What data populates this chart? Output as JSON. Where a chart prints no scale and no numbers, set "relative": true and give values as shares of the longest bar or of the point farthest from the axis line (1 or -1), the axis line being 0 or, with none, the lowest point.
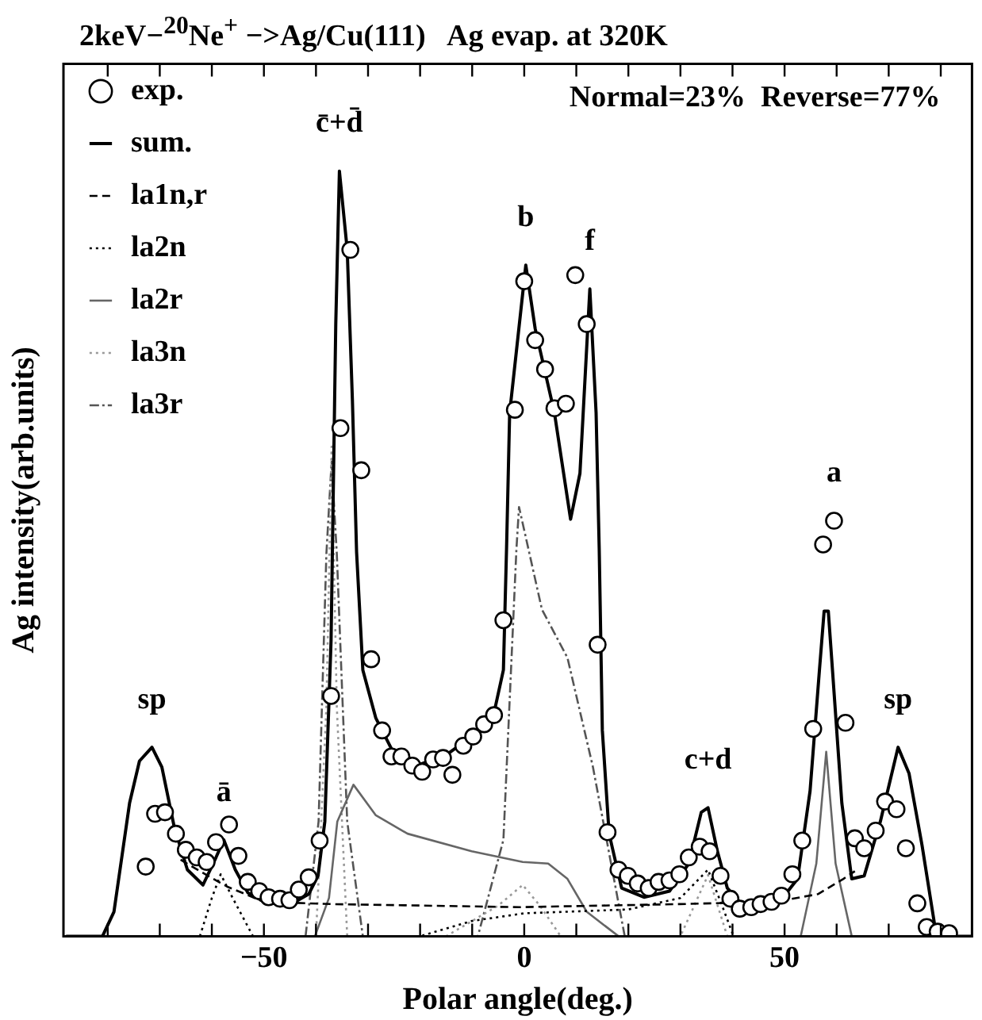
{
  "chart_data": {
    "type": "line",
    "title": "2keV−$^{20}$Ne$^{+}$ −>Ag/Cu(111)   Ag evap. at 320K",
    "subtitle": "Normal=23%  Reverse=77%",
    "xlabel": "Polar angle(deg.)",
    "ylabel": "Ag intensity(arb.units)",
    "relative": true,
    "grid": false,
    "legend": "top left",
    "xlim": [
      -88.5,
      86
    ],
    "xticks": [
      {
        "value": -80,
        "label": null
      },
      {
        "value": -70,
        "label": null
      },
      {
        "value": -60,
        "label": null
      },
      -50,
      {
        "value": -40,
        "label": null
      },
      {
        "value": -30,
        "label": null
      },
      {
        "value": -20,
        "label": null
      },
      {
        "value": -10,
        "label": null
      },
      0,
      {
        "value": 10,
        "label": null
      },
      {
        "value": 20,
        "label": null
      },
      {
        "value": 30,
        "label": null
      },
      {
        "value": 40,
        "label": null
      },
      50,
      {
        "value": 60,
        "label": null
      },
      {
        "value": 70,
        "label": null
      },
      {
        "value": 80,
        "label": null
      }
    ],
    "annotations": [
      {
        "text": "sp",
        "x": -71.5,
        "y": 0.247
      },
      {
        "text": "ā",
        "x": -57.7,
        "y": 0.126
      },
      {
        "text": "c̄+d̄",
        "x": -35.5,
        "y": 1.0
      },
      {
        "text": "b",
        "x": 0.3,
        "y": 0.877
      },
      {
        "text": "f",
        "x": 12.6,
        "y": 0.846
      },
      {
        "text": "c+d",
        "x": 35.3,
        "y": 0.168
      },
      {
        "text": "a",
        "x": 59.5,
        "y": 0.543
      },
      {
        "text": "sp",
        "x": 71.8,
        "y": 0.247
      }
    ],
    "series": [
      {
        "name": "exp.",
        "type": "scatter",
        "marker": "circle",
        "color": "#000000",
        "x": [
          -72.7,
          -70.9,
          -69.0,
          -66.9,
          -65.0,
          -62.9,
          -61.0,
          -59.2,
          -56.7,
          -54.9,
          -53.1,
          -50.9,
          -49.1,
          -46.9,
          -45.1,
          -43.3,
          -41.4,
          -39.3,
          -37.1,
          -35.3,
          -33.4,
          -31.3,
          -29.4,
          -27.3,
          -25.5,
          -23.6,
          -21.5,
          -19.6,
          -17.5,
          -15.6,
          -13.8,
          -11.7,
          -9.8,
          -7.7,
          -5.8,
          -4.0,
          -1.8,
          0,
          2.1,
          4.0,
          5.8,
          8.0,
          9.8,
          12.0,
          14.1,
          16.0,
          18.1,
          19.9,
          21.8,
          23.9,
          25.8,
          27.9,
          29.8,
          31.6,
          33.7,
          35.6,
          37.7,
          39.6,
          41.4,
          43.6,
          45.4,
          47.5,
          49.4,
          51.5,
          53.4,
          55.5,
          57.4,
          59.5,
          61.7,
          63.5,
          65.3,
          67.5,
          69.3,
          71.5,
          73.3,
          75.5,
          77.3,
          79.4,
          81.6
        ],
        "values": [
          0.091,
          0.16,
          0.162,
          0.134,
          0.113,
          0.103,
          0.097,
          0.123,
          0.146,
          0.105,
          0.071,
          0.059,
          0.051,
          0.049,
          0.047,
          0.061,
          0.077,
          0.125,
          0.314,
          0.664,
          0.897,
          0.609,
          0.362,
          0.269,
          0.235,
          0.235,
          0.223,
          0.215,
          0.231,
          0.233,
          0.211,
          0.249,
          0.261,
          0.277,
          0.289,
          0.413,
          0.688,
          0.856,
          0.779,
          0.741,
          0.69,
          0.696,
          0.864,
          0.8,
          0.381,
          0.136,
          0.087,
          0.079,
          0.069,
          0.063,
          0.071,
          0.073,
          0.081,
          0.103,
          0.117,
          0.111,
          0.079,
          0.049,
          0.036,
          0.038,
          0.042,
          0.045,
          0.053,
          0.081,
          0.125,
          0.271,
          0.512,
          0.543,
          0.279,
          0.128,
          0.115,
          0.138,
          0.176,
          0.166,
          0.115,
          0.043,
          0.012,
          0.006,
          0.004
        ]
      },
      {
        "name": "sum.",
        "type": "line",
        "line_style": "solid",
        "color": "#000000",
        "x": [
          -88,
          -81,
          -78.8,
          -75.8,
          -73.9,
          -71.5,
          -69.6,
          -67.2,
          -64.7,
          -61.7,
          -59.2,
          -57.7,
          -55.5,
          -53.1,
          -49.4,
          -44.5,
          -41.4,
          -39.6,
          -38.3,
          -37.1,
          -36.2,
          -35.5,
          -34.0,
          -33.0,
          -32.2,
          -31.0,
          -28.5,
          -25.5,
          -19.9,
          -15.0,
          -10.1,
          -5.8,
          -4.0,
          -3.4,
          -2.8,
          0.3,
          2.1,
          5.8,
          8.9,
          10.7,
          12.6,
          13.8,
          14.4,
          15.0,
          16.3,
          18.7,
          23.0,
          27.9,
          31.6,
          34.0,
          35.3,
          37.1,
          39.0,
          42.0,
          48.8,
          52.5,
          54.9,
          56.7,
          57.6,
          58.4,
          59.2,
          61.0,
          62.9,
          65.3,
          68.4,
          71.8,
          73.9,
          76.4,
          78.8,
          80.7,
          86
        ],
        "values": [
          0,
          0,
          0.032,
          0.174,
          0.229,
          0.247,
          0.221,
          0.142,
          0.087,
          0.067,
          0.103,
          0.126,
          0.087,
          0.057,
          0.043,
          0.043,
          0.055,
          0.079,
          0.15,
          0.387,
          0.8,
          1.0,
          0.897,
          0.7,
          0.502,
          0.348,
          0.285,
          0.245,
          0.225,
          0.237,
          0.261,
          0.292,
          0.348,
          0.506,
          0.684,
          0.877,
          0.794,
          0.684,
          0.545,
          0.605,
          0.846,
          0.684,
          0.506,
          0.269,
          0.134,
          0.063,
          0.051,
          0.059,
          0.095,
          0.162,
          0.168,
          0.111,
          0.063,
          0.04,
          0.043,
          0.075,
          0.19,
          0.348,
          0.425,
          0.425,
          0.348,
          0.174,
          0.075,
          0.079,
          0.15,
          0.247,
          0.213,
          0.119,
          0.016,
          0,
          0
        ]
      },
      {
        "name": "la1n,r",
        "type": "line",
        "line_style": "dashed",
        "color": "#000000",
        "x": [
          -66,
          -62.3,
          -57.1,
          -50,
          -36.8,
          -0.9,
          29.8,
          48.2,
          56.4,
          61.3,
          63.5
        ],
        "values": [
          0.1,
          0.085,
          0.065,
          0.045,
          0.042,
          0.038,
          0.042,
          0.045,
          0.055,
          0.075,
          0.085
        ]
      },
      {
        "name": "la2n",
        "type": "line",
        "line_style": "dotted",
        "color": "#000000",
        "x": [
          -62.3,
          -60,
          -58.3,
          -56,
          -52.1,
          -20,
          -10,
          0,
          20,
          30,
          35.3,
          38,
          40.2
        ],
        "values": [
          0,
          0.05,
          0.081,
          0.05,
          0,
          0,
          0.02,
          0.03,
          0.035,
          0.05,
          0.087,
          0.04,
          0
        ]
      },
      {
        "name": "la2r",
        "type": "line",
        "line_style": "solid",
        "color": "#666666",
        "x": [
          -40.2,
          -37.5,
          -35.9,
          -32.8,
          -28.5,
          -22.4,
          -10.1,
          -0.3,
          4.6,
          8.3,
          12.0,
          18.1,
          53.1,
          56.1,
          58.0,
          59.8,
          62.9
        ],
        "values": [
          0,
          0.05,
          0.15,
          0.198,
          0.158,
          0.134,
          0.111,
          0.097,
          0.095,
          0.075,
          0.032,
          0,
          0,
          0.095,
          0.241,
          0.095,
          0
        ]
      },
      {
        "name": "la3n",
        "type": "line",
        "line_style": "dotted",
        "color": "#999999",
        "x": [
          -40,
          -38,
          -37,
          -36,
          -34,
          -15,
          -5,
          -0.3,
          3,
          7,
          30,
          35.3,
          39
        ],
        "values": [
          0,
          0.3,
          0.64,
          0.3,
          0,
          0,
          0.04,
          0.067,
          0.04,
          0,
          0,
          0.08,
          0
        ]
      },
      {
        "name": "la3r",
        "type": "line",
        "line_style": "dashdot",
        "color": "#555555",
        "x": [
          -42,
          -39.5,
          -38,
          -37,
          -36,
          -34,
          -31,
          -8.9,
          -4.0,
          -1.5,
          -1,
          3.4,
          8.3,
          13.2,
          19.3
        ],
        "values": [
          0,
          0.15,
          0.5,
          0.62,
          0.5,
          0.15,
          0,
          0,
          0.126,
          0.506,
          0.561,
          0.427,
          0.364,
          0.221,
          0
        ]
      }
    ]
  }
}
